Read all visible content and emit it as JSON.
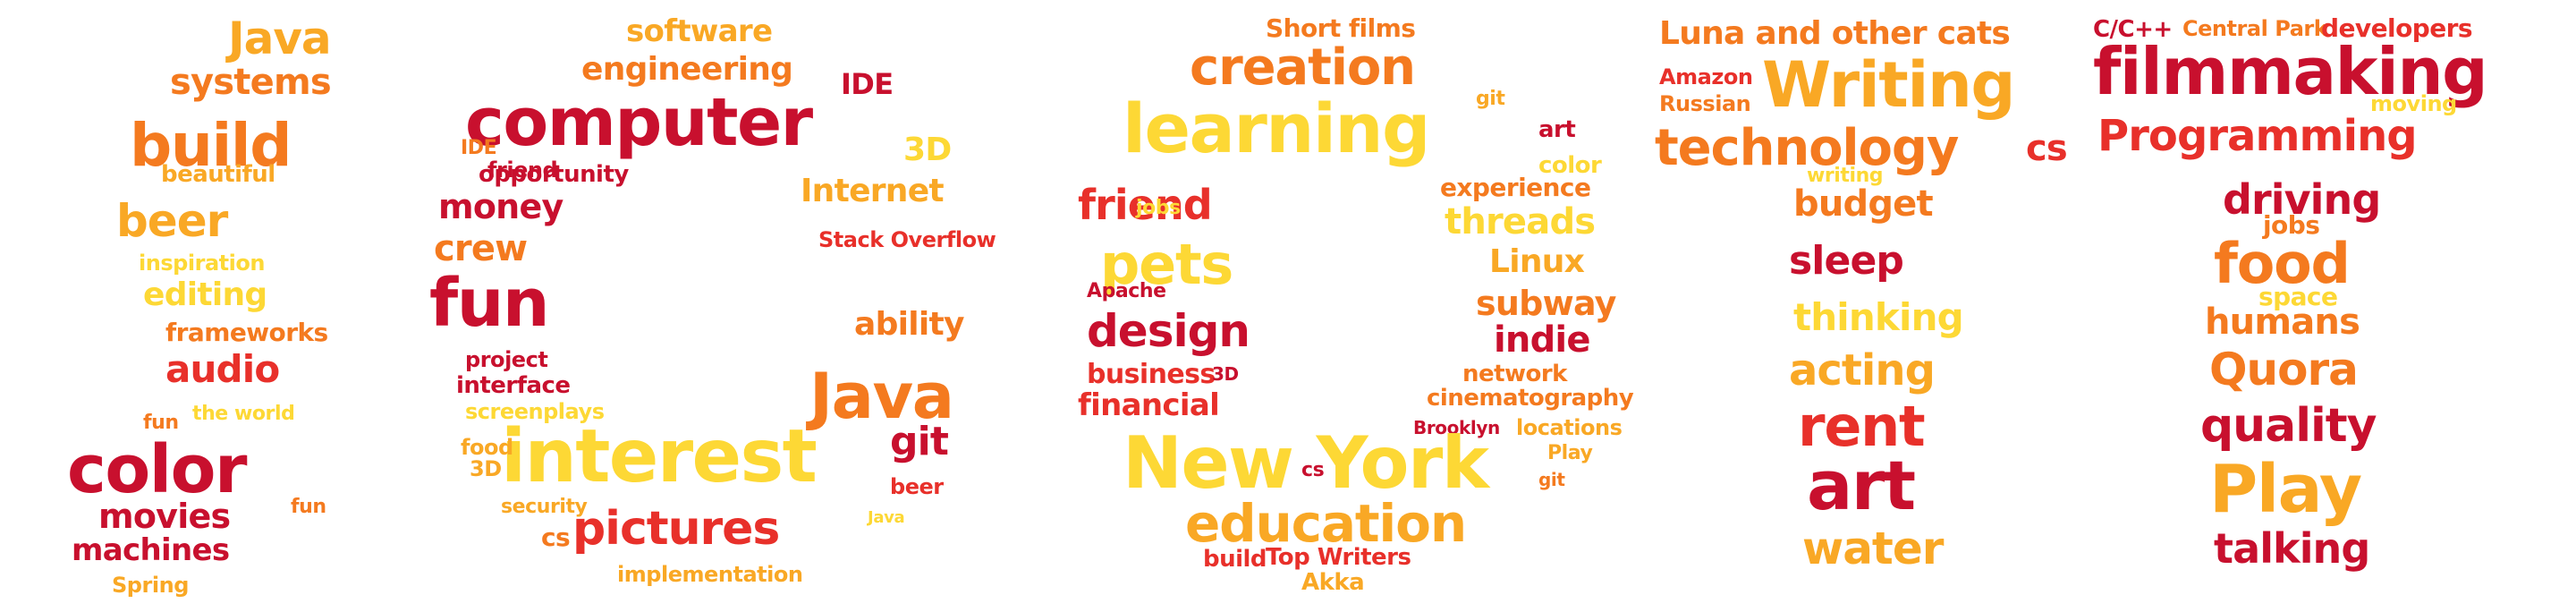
{
  "palette": {
    "crimson": "#c8102e",
    "red": "#e8302a",
    "orange": "#f47a1f",
    "amber": "#f9a825",
    "yellow": "#fbc02d",
    "gold": "#fdd835"
  },
  "words": [
    {
      "t": "Java",
      "c": "amber"
    },
    {
      "t": "systems",
      "c": "orange"
    },
    {
      "t": "build",
      "c": "orange"
    },
    {
      "t": "beautiful",
      "c": "amber"
    },
    {
      "t": "beer",
      "c": "amber"
    },
    {
      "t": "inspiration",
      "c": "gold"
    },
    {
      "t": "editing",
      "c": "gold"
    },
    {
      "t": "frameworks",
      "c": "orange"
    },
    {
      "t": "audio",
      "c": "red"
    },
    {
      "t": "fun",
      "c": "orange"
    },
    {
      "t": "the world",
      "c": "gold"
    },
    {
      "t": "color",
      "c": "crimson"
    },
    {
      "t": "movies",
      "c": "crimson"
    },
    {
      "t": "fun",
      "c": "orange"
    },
    {
      "t": "machines",
      "c": "crimson"
    },
    {
      "t": "Spring",
      "c": "amber"
    },
    {
      "t": "software",
      "c": "amber"
    },
    {
      "t": "engineering",
      "c": "orange"
    },
    {
      "t": "IDE",
      "c": "crimson"
    },
    {
      "t": "computer",
      "c": "crimson"
    },
    {
      "t": "friend",
      "c": "crimson"
    },
    {
      "t": "3D",
      "c": "gold"
    },
    {
      "t": "IDE",
      "c": "orange"
    },
    {
      "t": "opportunity",
      "c": "crimson"
    },
    {
      "t": "money",
      "c": "crimson"
    },
    {
      "t": "Internet",
      "c": "amber"
    },
    {
      "t": "crew",
      "c": "orange"
    },
    {
      "t": "Stack Overflow",
      "c": "red"
    },
    {
      "t": "fun",
      "c": "crimson"
    },
    {
      "t": "ability",
      "c": "orange"
    },
    {
      "t": "project",
      "c": "crimson"
    },
    {
      "t": "interface",
      "c": "crimson"
    },
    {
      "t": "Java",
      "c": "orange"
    },
    {
      "t": "screenplays",
      "c": "gold"
    },
    {
      "t": "interest",
      "c": "gold"
    },
    {
      "t": "git",
      "c": "crimson"
    },
    {
      "t": "food",
      "c": "amber"
    },
    {
      "t": "3D",
      "c": "amber"
    },
    {
      "t": "beer",
      "c": "red"
    },
    {
      "t": "security",
      "c": "amber"
    },
    {
      "t": "pictures",
      "c": "red"
    },
    {
      "t": "cs",
      "c": "orange"
    },
    {
      "t": "Java",
      "c": "gold"
    },
    {
      "t": "implementation",
      "c": "amber"
    },
    {
      "t": "Short films",
      "c": "orange"
    },
    {
      "t": "creation",
      "c": "orange"
    },
    {
      "t": "learning",
      "c": "gold"
    },
    {
      "t": "art",
      "c": "crimson"
    },
    {
      "t": "git",
      "c": "amber"
    },
    {
      "t": "color",
      "c": "gold"
    },
    {
      "t": "experience",
      "c": "orange"
    },
    {
      "t": "friend",
      "c": "red"
    },
    {
      "t": "jobs",
      "c": "gold"
    },
    {
      "t": "threads",
      "c": "gold"
    },
    {
      "t": "pets",
      "c": "gold"
    },
    {
      "t": "Linux",
      "c": "amber"
    },
    {
      "t": "Apache",
      "c": "crimson"
    },
    {
      "t": "subway",
      "c": "orange"
    },
    {
      "t": "design",
      "c": "crimson"
    },
    {
      "t": "indie",
      "c": "crimson"
    },
    {
      "t": "business",
      "c": "red"
    },
    {
      "t": "3D",
      "c": "crimson"
    },
    {
      "t": "network",
      "c": "orange"
    },
    {
      "t": "financial",
      "c": "red"
    },
    {
      "t": "cinematography",
      "c": "orange"
    },
    {
      "t": "Brooklyn",
      "c": "crimson"
    },
    {
      "t": "locations",
      "c": "amber"
    },
    {
      "t": "New York",
      "c": "gold"
    },
    {
      "t": "cs",
      "c": "crimson"
    },
    {
      "t": "Play",
      "c": "amber"
    },
    {
      "t": "git",
      "c": "orange"
    },
    {
      "t": "education",
      "c": "amber"
    },
    {
      "t": "build",
      "c": "red"
    },
    {
      "t": "Top Writers",
      "c": "red"
    },
    {
      "t": "Akka",
      "c": "amber"
    },
    {
      "t": "Luna and other cats",
      "c": "orange"
    },
    {
      "t": "Amazon",
      "c": "red"
    },
    {
      "t": "Writing",
      "c": "amber"
    },
    {
      "t": "Russian",
      "c": "orange"
    },
    {
      "t": "technology",
      "c": "orange"
    },
    {
      "t": "cs",
      "c": "red"
    },
    {
      "t": "writing",
      "c": "gold"
    },
    {
      "t": "budget",
      "c": "orange"
    },
    {
      "t": "sleep",
      "c": "crimson"
    },
    {
      "t": "thinking",
      "c": "gold"
    },
    {
      "t": "acting",
      "c": "amber"
    },
    {
      "t": "rent",
      "c": "red"
    },
    {
      "t": "art",
      "c": "crimson"
    },
    {
      "t": "water",
      "c": "amber"
    },
    {
      "t": "C/C++",
      "c": "crimson"
    },
    {
      "t": "Central Park",
      "c": "orange"
    },
    {
      "t": "developers",
      "c": "red"
    },
    {
      "t": "filmmaking",
      "c": "crimson"
    },
    {
      "t": "moving",
      "c": "gold"
    },
    {
      "t": "Programming",
      "c": "red"
    },
    {
      "t": "driving",
      "c": "crimson"
    },
    {
      "t": "jobs",
      "c": "orange"
    },
    {
      "t": "food",
      "c": "orange"
    },
    {
      "t": "space",
      "c": "gold"
    },
    {
      "t": "humans",
      "c": "orange"
    },
    {
      "t": "Quora",
      "c": "orange"
    },
    {
      "t": "quality",
      "c": "crimson"
    },
    {
      "t": "Play",
      "c": "amber"
    },
    {
      "t": "talking",
      "c": "crimson"
    }
  ]
}
